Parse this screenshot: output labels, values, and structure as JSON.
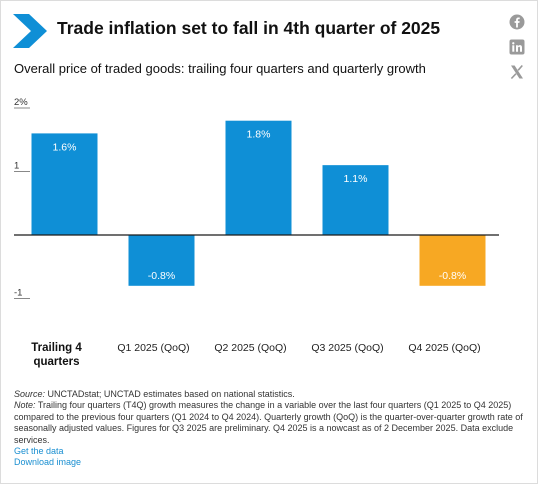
{
  "header": {
    "title": "Trade inflation set to fall in 4th quarter of 2025",
    "subtitle": "Overall price of traded goods: trailing four quarters and quarterly growth"
  },
  "share_icons": [
    {
      "name": "facebook-icon"
    },
    {
      "name": "linkedin-icon"
    },
    {
      "name": "x-icon"
    }
  ],
  "colors": {
    "bar_primary": "#0f8fd6",
    "bar_highlight": "#f7a823",
    "logo": "#0f8fd6",
    "link": "#1a8fd1"
  },
  "chart_data": {
    "type": "bar",
    "categories": [
      "Trailing 4 quarters",
      "Q1 2025 (QoQ)",
      "Q2 2025 (QoQ)",
      "Q3 2025 (QoQ)",
      "Q4 2025 (QoQ)"
    ],
    "values": [
      1.6,
      -0.8,
      1.8,
      1.1,
      -0.8
    ],
    "data_labels": [
      "1.6%",
      "-0.8%",
      "1.8%",
      "1.1%",
      "-0.8%"
    ],
    "highlight_index": 4,
    "y_ticks": [
      {
        "value": 2,
        "label": "2%"
      },
      {
        "value": 1,
        "label": "1"
      },
      {
        "value": -1,
        "label": "-1"
      }
    ],
    "ylim": [
      -1,
      2
    ],
    "zero_line": true,
    "grid": false
  },
  "footer": {
    "source_label": "Source:",
    "source_text": " UNCTADstat; UNCTAD estimates based on national statistics.",
    "note_label": "Note:",
    "note_text": " Trailing four quarters (T4Q) growth measures the change in a variable over the last four quarters (Q1 2025 to Q4 2025) compared to the previous four quarters (Q1 2024 to Q4 2024). Quarterly growth (QoQ) is the quarter-over-quarter growth rate of seasonally adjusted values. Figures for Q3 2025 are preliminary. Q4 2025 is a nowcast as of 2 December 2025. Data exclude services.",
    "get_data": "Get the data",
    "download_image": "Download image"
  }
}
